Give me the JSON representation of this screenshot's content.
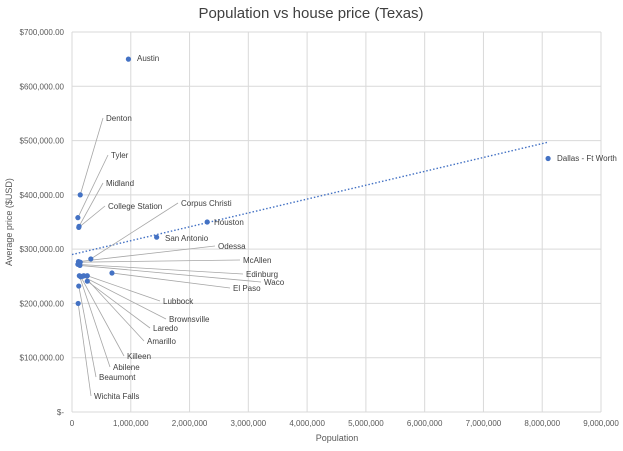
{
  "chart_data": {
    "type": "scatter",
    "title": "Population vs house price (Texas)",
    "xlabel": "Population",
    "ylabel": "Average price ($USD)",
    "xlim": [
      0,
      9000000
    ],
    "ylim": [
      0,
      700000
    ],
    "x_ticks": [
      0,
      1000000,
      2000000,
      3000000,
      4000000,
      5000000,
      6000000,
      7000000,
      8000000,
      9000000
    ],
    "x_tick_labels": [
      "0",
      "1,000,000",
      "2,000,000",
      "3,000,000",
      "4,000,000",
      "5,000,000",
      "6,000,000",
      "7,000,000",
      "8,000,000",
      "9,000,000"
    ],
    "y_ticks": [
      0,
      100000,
      200000,
      300000,
      400000,
      500000,
      600000,
      700000
    ],
    "y_tick_labels": [
      "$-",
      "$100,000.00",
      "$200,000.00",
      "$300,000.00",
      "$400,000.00",
      "$500,000.00",
      "$600,000.00",
      "$700,000.00"
    ],
    "grid": "vertical and horizontal major gridlines",
    "legend": "none",
    "marker_color": "#4472C4",
    "trendline": {
      "type": "linear",
      "style": "dotted",
      "color": "#4472C4",
      "from": [
        0,
        290000
      ],
      "to": [
        8100000,
        497000
      ]
    },
    "points": [
      {
        "label": "Austin",
        "x": 960000,
        "y": 650000
      },
      {
        "label": "Dallas - Ft Worth",
        "x": 8100000,
        "y": 467000
      },
      {
        "label": "Houston",
        "x": 2300000,
        "y": 350000
      },
      {
        "label": "San Antonio",
        "x": 1440000,
        "y": 322000
      },
      {
        "label": "Denton",
        "x": 140000,
        "y": 400000
      },
      {
        "label": "Tyler",
        "x": 100000,
        "y": 358000
      },
      {
        "label": "Midland",
        "x": 120000,
        "y": 342000
      },
      {
        "label": "College Station",
        "x": 115000,
        "y": 340000
      },
      {
        "label": "Corpus Christi",
        "x": 320000,
        "y": 282000
      },
      {
        "label": "Odessa",
        "x": 110000,
        "y": 277000
      },
      {
        "label": "McAllen",
        "x": 140000,
        "y": 276000
      },
      {
        "label": "Edinburg",
        "x": 100000,
        "y": 272000
      },
      {
        "label": "Waco",
        "x": 135000,
        "y": 270000
      },
      {
        "label": "El Paso",
        "x": 680000,
        "y": 256000
      },
      {
        "label": "Lubbock",
        "x": 260000,
        "y": 251000
      },
      {
        "label": "Brownsville",
        "x": 180000,
        "y": 250000
      },
      {
        "label": "Laredo",
        "x": 260000,
        "y": 241000
      },
      {
        "label": "Amarillo",
        "x": 200000,
        "y": 251000
      },
      {
        "label": "Killeen",
        "x": 150000,
        "y": 249000
      },
      {
        "label": "Abilene",
        "x": 125000,
        "y": 251000
      },
      {
        "label": "Beaumont",
        "x": 115000,
        "y": 232000
      },
      {
        "label": "Wichita Falls",
        "x": 105000,
        "y": 200000
      }
    ]
  }
}
